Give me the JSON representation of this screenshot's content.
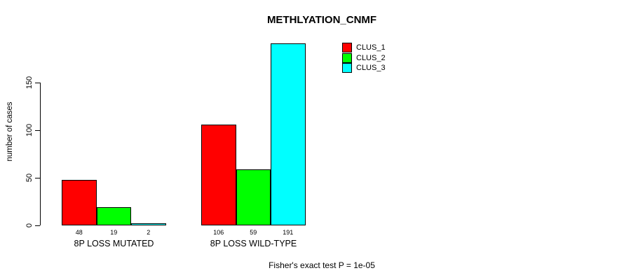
{
  "title": "METHLYATION_CNMF",
  "y_axis": {
    "label": "number of cases",
    "ticks": [
      0,
      50,
      100,
      150
    ]
  },
  "legend": {
    "entries": [
      {
        "label": "CLUS_1",
        "color": "#ff0000"
      },
      {
        "label": "CLUS_2",
        "color": "#00ff00"
      },
      {
        "label": "CLUS_3",
        "color": "#00ffff"
      }
    ]
  },
  "footer": "Fisher's exact test P = 1e-05",
  "chart_data": {
    "type": "bar",
    "title": "METHLYATION_CNMF",
    "categories": [
      "8P LOSS MUTATED",
      "8P LOSS WILD-TYPE"
    ],
    "series": [
      {
        "name": "CLUS_1",
        "color": "#ff0000",
        "values": [
          48,
          106
        ]
      },
      {
        "name": "CLUS_2",
        "color": "#00ff00",
        "values": [
          19,
          59
        ]
      },
      {
        "name": "CLUS_3",
        "color": "#00ffff",
        "values": [
          2,
          191
        ]
      }
    ],
    "bar_value_labels": [
      [
        48,
        19,
        2
      ],
      [
        106,
        59,
        191
      ]
    ],
    "xlabel": "",
    "ylabel": "number of cases",
    "ylim": [
      0,
      191
    ],
    "yticks": [
      0,
      50,
      100,
      150
    ],
    "grid": false,
    "legend_position": "top-right",
    "annotation": "Fisher's exact test P = 1e-05"
  }
}
